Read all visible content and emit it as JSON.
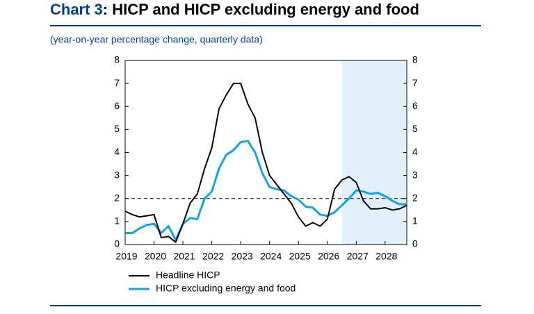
{
  "chart_data": {
    "type": "line",
    "chart_label": "Chart 3",
    "title": ": HICP and HICP excluding energy and food",
    "subtitle": "(year-on-year percentage change, quarterly data)",
    "x": [
      2019,
      2019.25,
      2019.5,
      2019.75,
      2020,
      2020.25,
      2020.5,
      2020.75,
      2021,
      2021.25,
      2021.5,
      2021.75,
      2022,
      2022.25,
      2022.5,
      2022.75,
      2023,
      2023.25,
      2023.5,
      2023.75,
      2024,
      2024.25,
      2024.5,
      2024.75,
      2025,
      2025.25,
      2025.5,
      2025.75,
      2026,
      2026.25,
      2026.5,
      2026.75,
      2027,
      2027.25,
      2027.5,
      2027.75,
      2028,
      2028.25,
      2028.5,
      2028.75
    ],
    "series": [
      {
        "name": "Headline HICP",
        "color": "#000000",
        "values": [
          1.45,
          1.3,
          1.2,
          1.25,
          1.3,
          0.3,
          0.35,
          0.1,
          0.9,
          1.8,
          2.2,
          3.3,
          4.2,
          5.9,
          6.5,
          7.0,
          7.0,
          6.1,
          5.5,
          4.0,
          3.0,
          2.6,
          2.2,
          1.8,
          1.2,
          0.8,
          0.95,
          0.8,
          1.1,
          2.4,
          2.8,
          2.95,
          2.7,
          1.9,
          1.55,
          1.55,
          1.6,
          1.5,
          1.55,
          1.7
        ]
      },
      {
        "name": "HICP excluding energy and food",
        "color": "#12a3e3",
        "values": [
          0.5,
          0.5,
          0.7,
          0.85,
          0.9,
          0.5,
          0.8,
          0.2,
          0.9,
          1.15,
          1.1,
          2.0,
          2.3,
          3.3,
          3.9,
          4.1,
          4.45,
          4.5,
          4.0,
          3.1,
          2.5,
          2.4,
          2.35,
          2.1,
          1.95,
          1.65,
          1.6,
          1.3,
          1.25,
          1.4,
          1.7,
          2.0,
          2.35,
          2.3,
          2.2,
          2.25,
          2.1,
          1.9,
          1.75,
          1.75
        ]
      }
    ],
    "xlim": [
      2019,
      2028.75
    ],
    "xticks": [
      2019,
      2020,
      2021,
      2022,
      2023,
      2024,
      2025,
      2026,
      2027,
      2028
    ],
    "ylim": [
      0,
      8
    ],
    "yticks": [
      0,
      1,
      2,
      3,
      4,
      5,
      6,
      7,
      8
    ],
    "reference_line": 2,
    "projection_start": 2026.5,
    "grid": false
  }
}
